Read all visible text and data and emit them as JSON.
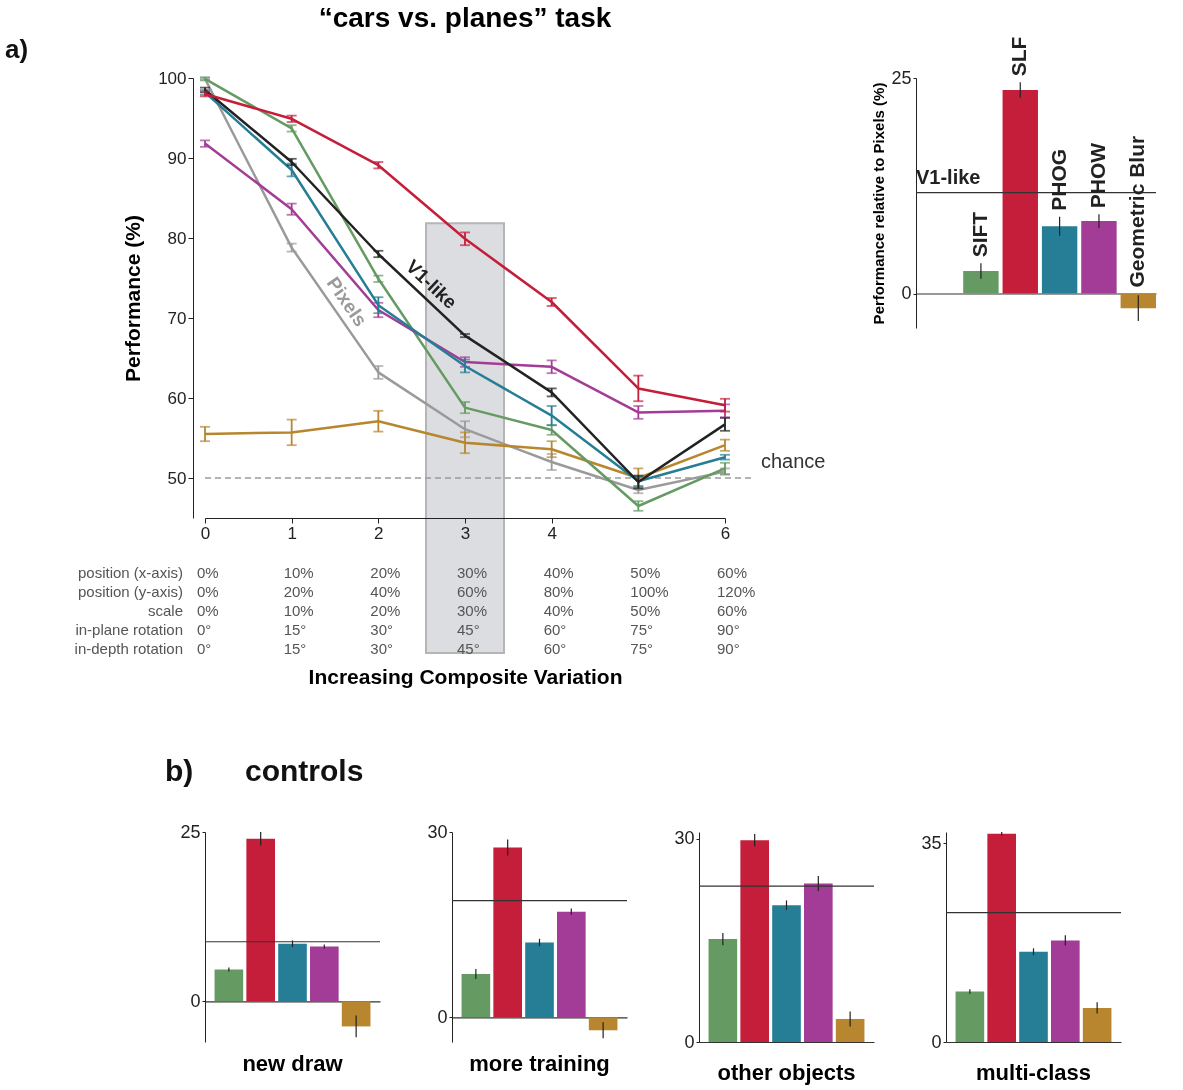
{
  "chart_data": [
    {
      "type": "line",
      "title": "“cars vs. planes” task",
      "xlabel": "Increasing Composite Variation",
      "ylabel": "Performance (%)",
      "x": [
        0,
        1,
        2,
        3,
        4,
        5,
        6
      ],
      "xlim": [
        0,
        6
      ],
      "xticks": [
        0,
        1,
        2,
        3,
        4,
        6
      ],
      "ylim": [
        45,
        100
      ],
      "yticks": [
        50,
        60,
        70,
        80,
        90,
        100
      ],
      "grid": false,
      "series": [
        {
          "name": "Pixels",
          "color": "#9a9a9a",
          "values": [
            99.9,
            78.8,
            63.2,
            56.1,
            52.0,
            48.5,
            50.8
          ],
          "errors": [
            0.1,
            0.5,
            0.8,
            1.0,
            1.0,
            0.4,
            0.4
          ]
        },
        {
          "color": "#b7862e",
          "values": [
            55.5,
            55.7,
            57.1,
            54.4,
            53.6,
            50.0,
            54.1
          ],
          "errors": [
            0.9,
            1.6,
            1.3,
            1.3,
            1.0,
            1.2,
            0.7
          ]
        },
        {
          "color": "#659b63",
          "values": [
            99.9,
            93.7,
            74.9,
            58.8,
            56.0,
            46.5,
            51.2
          ],
          "errors": [
            0.2,
            0.4,
            0.4,
            0.7,
            0.6,
            0.6,
            0.7
          ]
        },
        {
          "color": "#a23c96",
          "values": [
            91.8,
            83.6,
            71.0,
            64.5,
            63.9,
            58.2,
            58.4
          ],
          "errors": [
            0.4,
            0.7,
            0.9,
            0.6,
            0.8,
            0.8,
            0.8
          ]
        },
        {
          "color": "#267e96",
          "values": [
            98.2,
            88.5,
            71.6,
            64.0,
            57.8,
            49.6,
            52.6
          ],
          "errors": [
            0.3,
            0.8,
            1.0,
            0.8,
            1.2,
            0.6,
            0.3
          ]
        },
        {
          "name": "V1-like",
          "color": "#222222",
          "values": [
            98.5,
            89.5,
            78.0,
            67.8,
            60.7,
            49.5,
            56.7
          ],
          "errors": [
            0.3,
            0.4,
            0.4,
            0.2,
            0.5,
            0.8,
            0.8
          ]
        },
        {
          "color": "#c41e3a",
          "values": [
            98.0,
            94.9,
            89.1,
            79.9,
            72.0,
            61.2,
            59.1
          ],
          "errors": [
            0.3,
            0.4,
            0.4,
            0.8,
            0.5,
            1.6,
            0.8
          ]
        }
      ],
      "ref_lines": [
        {
          "axis": "y",
          "value": 50,
          "label": "chance",
          "color": "#9a9a9a",
          "line_style": "dashed"
        }
      ],
      "bands": [
        {
          "axis": "x",
          "from": 2.55,
          "to": 3.45,
          "color": "#dcdde0"
        }
      ],
      "annotations": [
        "a)",
        "position (x-axis)",
        "0%",
        "10%",
        "20%",
        "30%",
        "40%",
        "50%",
        "60%",
        "position (y-axis)",
        "0%",
        "20%",
        "40%",
        "60%",
        "80%",
        "100%",
        "120%",
        "scale",
        "0%",
        "10%",
        "20%",
        "30%",
        "40%",
        "50%",
        "60%",
        "in-plane rotation",
        "0°",
        "15°",
        "30°",
        "45°",
        "60°",
        "75°",
        "90°",
        "in-depth rotation",
        "0°",
        "15°",
        "30°",
        "45°",
        "60°",
        "75°",
        "90°"
      ]
    },
    {
      "type": "bar",
      "ylabel": "Performance relative to Pixels (%)",
      "categories": [
        "SIFT",
        "SLF",
        "PHOG",
        "PHOW",
        "Geometric Blur"
      ],
      "values": [
        2.6,
        23.6,
        7.8,
        8.4,
        -1.7
      ],
      "errors": [
        0.9,
        0.9,
        1.1,
        0.8,
        1.5
      ],
      "colors": [
        "#659b63",
        "#c41e3a",
        "#267e96",
        "#a23c96",
        "#b7862e"
      ],
      "ylim": [
        -4,
        25
      ],
      "yticks": [
        0,
        25
      ],
      "ref_lines": [
        {
          "axis": "y",
          "value": 11.7,
          "label": "V1-like",
          "color": "#333333"
        }
      ]
    },
    {
      "type": "bar",
      "title": "new draw",
      "categories": [
        null,
        null,
        null,
        null,
        null
      ],
      "values": [
        4.7,
        24.0,
        8.5,
        8.1,
        -3.7
      ],
      "errors": [
        0.3,
        1.0,
        0.5,
        0.3,
        1.6
      ],
      "colors": [
        "#659b63",
        "#c41e3a",
        "#267e96",
        "#a23c96",
        "#b7862e"
      ],
      "ylim": [
        -6,
        25
      ],
      "yticks": [
        0,
        25
      ],
      "ref_lines": [
        {
          "axis": "y",
          "value": 8.8,
          "color": "#333333"
        }
      ],
      "annotations": [
        "b)",
        "controls"
      ]
    },
    {
      "type": "bar",
      "title": "more training",
      "categories": [
        null,
        null,
        null,
        null,
        null
      ],
      "values": [
        7.0,
        27.5,
        12.1,
        17.1,
        -2.1
      ],
      "errors": [
        0.8,
        1.3,
        0.6,
        0.5,
        1.3
      ],
      "colors": [
        "#659b63",
        "#c41e3a",
        "#267e96",
        "#a23c96",
        "#b7862e"
      ],
      "ylim": [
        -4,
        30
      ],
      "yticks": [
        0,
        30
      ],
      "ref_lines": [
        {
          "axis": "y",
          "value": 18.9,
          "color": "#333333"
        }
      ]
    },
    {
      "type": "bar",
      "title": "other objects",
      "categories": [
        null,
        null,
        null,
        null,
        null
      ],
      "values": [
        15.2,
        29.8,
        20.2,
        23.4,
        3.4
      ],
      "errors": [
        0.9,
        0.9,
        0.7,
        1.1,
        1.1
      ],
      "colors": [
        "#659b63",
        "#c41e3a",
        "#267e96",
        "#a23c96",
        "#b7862e"
      ],
      "ylim": [
        0,
        31
      ],
      "yticks": [
        0,
        30
      ],
      "ref_lines": [
        {
          "axis": "y",
          "value": 23.0,
          "color": "#333333"
        }
      ]
    },
    {
      "type": "bar",
      "title": "multi-class",
      "categories": [
        null,
        null,
        null,
        null,
        null
      ],
      "values": [
        8.9,
        36.7,
        15.9,
        17.9,
        6.0
      ],
      "errors": [
        0.4,
        0.3,
        0.6,
        0.9,
        1.0
      ],
      "colors": [
        "#659b63",
        "#c41e3a",
        "#267e96",
        "#a23c96",
        "#b7862e"
      ],
      "ylim": [
        0,
        37
      ],
      "yticks": [
        0,
        35
      ],
      "ref_lines": [
        {
          "axis": "y",
          "value": 22.8,
          "color": "#333333"
        }
      ]
    }
  ]
}
